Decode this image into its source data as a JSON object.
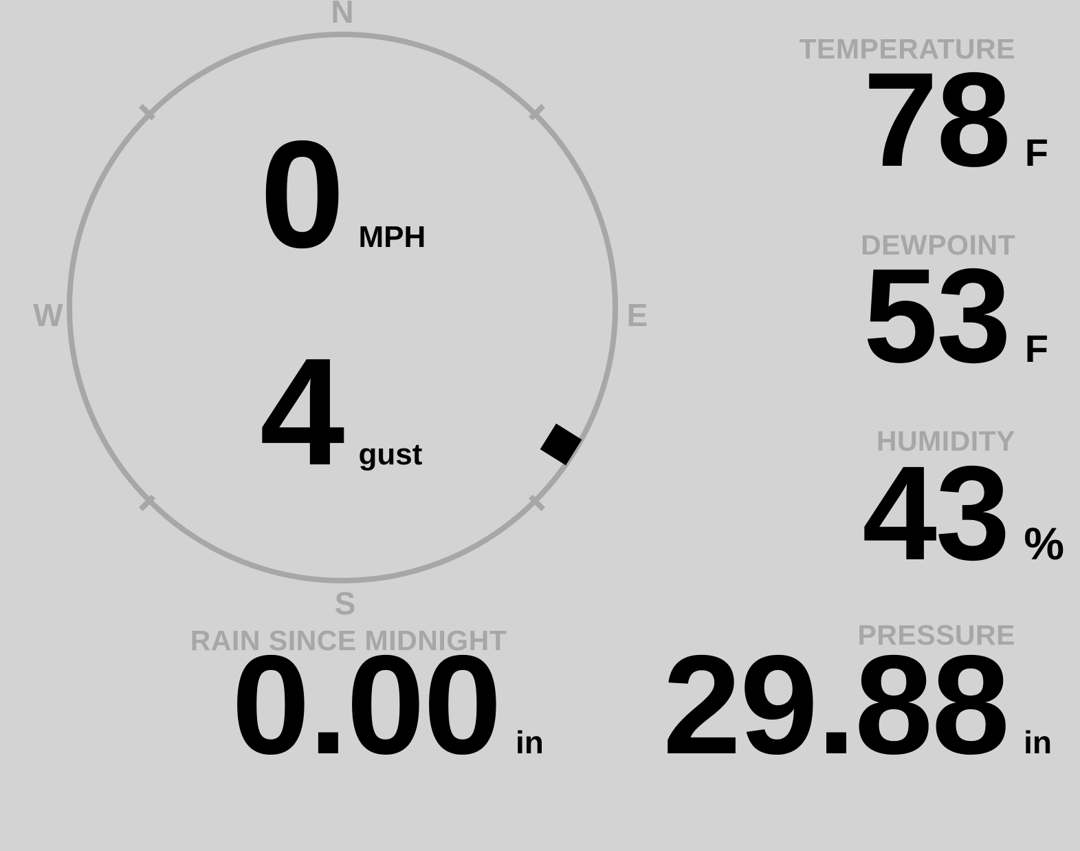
{
  "theme": {
    "background": "#d3d3d3",
    "muted_gray": "#a7a7a7",
    "text_black": "#000000"
  },
  "wind": {
    "compass": {
      "cardinals": {
        "north": "N",
        "east": "E",
        "south": "S",
        "west": "W"
      },
      "direction_deg": 122
    },
    "speed": {
      "value": "0",
      "unit": "MPH"
    },
    "gust": {
      "value": "4",
      "unit": "gust"
    }
  },
  "metrics": {
    "temperature": {
      "label": "TEMPERATURE",
      "value": "78",
      "unit": "F"
    },
    "dewpoint": {
      "label": "DEWPOINT",
      "value": "53",
      "unit": "F"
    },
    "humidity": {
      "label": "HUMIDITY",
      "value": "43",
      "unit": "%"
    },
    "pressure": {
      "label": "PRESSURE",
      "value": "29.88",
      "unit": "in"
    },
    "rain": {
      "label": "RAIN SINCE MIDNIGHT",
      "value": "0.00",
      "unit": "in"
    }
  }
}
